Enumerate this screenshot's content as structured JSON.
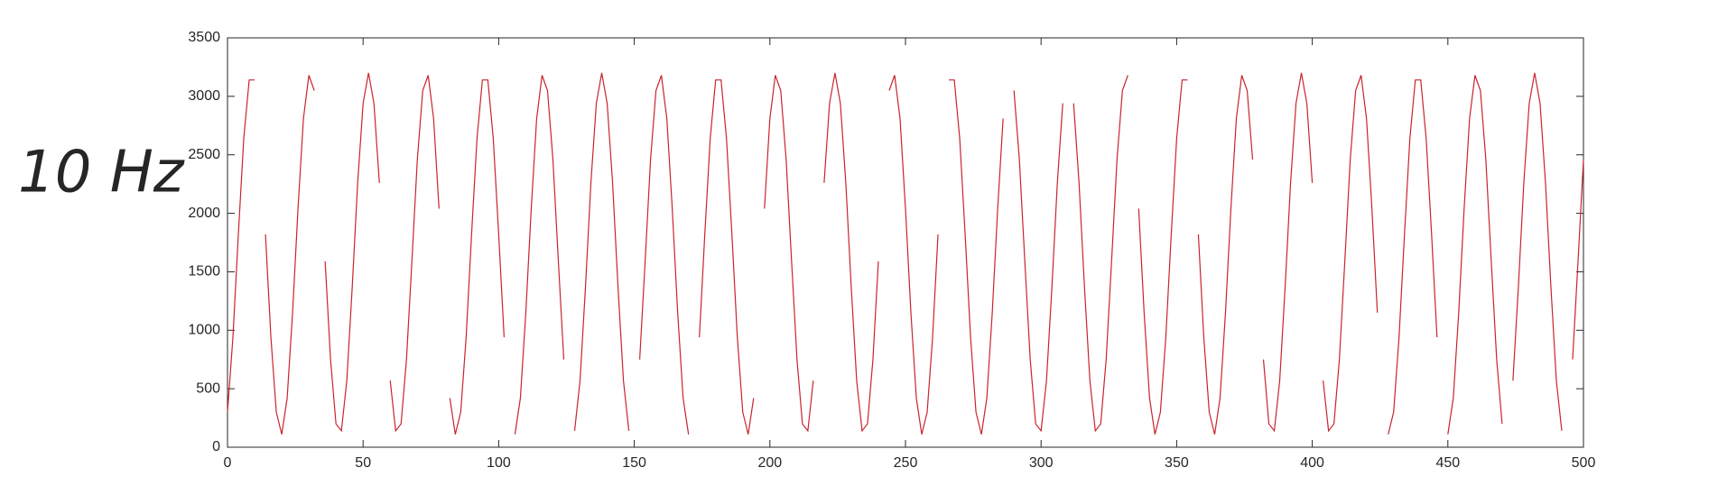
{
  "chart_data": {
    "type": "line",
    "annotation": "10 Hz",
    "annotation_color": "#1874cd",
    "x": [
      0,
      2,
      4,
      6,
      8,
      10,
      12,
      14,
      16,
      18,
      20,
      22,
      24,
      26,
      28,
      30,
      32,
      34,
      36,
      38,
      40,
      42,
      44,
      46,
      48,
      50,
      52,
      54,
      56,
      58,
      60,
      62,
      64,
      66,
      68,
      70,
      72,
      74,
      76,
      78,
      80,
      82,
      84,
      86,
      88,
      90,
      92,
      94,
      96,
      98,
      100,
      102,
      104,
      106,
      108,
      110,
      112,
      114,
      116,
      118,
      120,
      122,
      124,
      126,
      128,
      130,
      132,
      134,
      136,
      138,
      140,
      142,
      144,
      146,
      148,
      150,
      152,
      154,
      156,
      158,
      160,
      162,
      164,
      166,
      168,
      170,
      172,
      174,
      176,
      178,
      180,
      182,
      184,
      186,
      188,
      190,
      192,
      194,
      196,
      198,
      200,
      202,
      204,
      206,
      208,
      210,
      212,
      214,
      216,
      218,
      220,
      222,
      224,
      226,
      228,
      230,
      232,
      234,
      236,
      238,
      240,
      242,
      244,
      246,
      248,
      250,
      252,
      254,
      256,
      258,
      260,
      262,
      264,
      266,
      268,
      270,
      272,
      274,
      276,
      278,
      280,
      282,
      284,
      286,
      288,
      290,
      292,
      294,
      296,
      298,
      300,
      302,
      304,
      306,
      308,
      310,
      312,
      314,
      316,
      318,
      320,
      322,
      324,
      326,
      328,
      330,
      332,
      334,
      336,
      338,
      340,
      342,
      344,
      346,
      348,
      350,
      352,
      354,
      356,
      358,
      360,
      362,
      364,
      366,
      368,
      370,
      372,
      374,
      376,
      378,
      380,
      382,
      384,
      386,
      388,
      390,
      392,
      394,
      396,
      398,
      400,
      402,
      404,
      406,
      408,
      410,
      412,
      414,
      416,
      418,
      420,
      422,
      424,
      426,
      428,
      430,
      432,
      434,
      436,
      438,
      440,
      442,
      444,
      446,
      448,
      450,
      452,
      454,
      456,
      458,
      460,
      462,
      464,
      466,
      468,
      470,
      472,
      474,
      476,
      478,
      480,
      482,
      484,
      486,
      488,
      490,
      492,
      494,
      496,
      498,
      500
    ],
    "series": [
      {
        "color": "#c8252b",
        "values": [
          300,
          940,
          1820,
          2640,
          3140,
          3140,
          null,
          1820,
          940,
          300,
          110,
          420,
          1150,
          2040,
          2810,
          3180,
          3050,
          null,
          1590,
          750,
          200,
          140,
          570,
          1370,
          2260,
          2940,
          3200,
          2940,
          2260,
          null,
          570,
          140,
          200,
          750,
          1590,
          2460,
          3050,
          3180,
          2810,
          2040,
          null,
          420,
          110,
          300,
          940,
          1820,
          2640,
          3140,
          3140,
          2640,
          1820,
          940,
          null,
          110,
          420,
          1150,
          2040,
          2810,
          3180,
          3050,
          2460,
          1590,
          750,
          null,
          140,
          570,
          1370,
          2260,
          2940,
          3200,
          2940,
          2260,
          1370,
          570,
          140,
          null,
          750,
          1590,
          2460,
          3050,
          3180,
          2810,
          2040,
          1150,
          420,
          110,
          null,
          940,
          1820,
          2640,
          3140,
          3140,
          2640,
          1820,
          940,
          300,
          110,
          420,
          null,
          2040,
          2810,
          3180,
          3050,
          2460,
          1590,
          750,
          200,
          140,
          570,
          null,
          2260,
          2940,
          3200,
          2940,
          2260,
          1370,
          570,
          140,
          200,
          750,
          1590,
          null,
          3050,
          3180,
          2810,
          2040,
          1150,
          420,
          110,
          300,
          940,
          1820,
          null,
          3140,
          3140,
          2640,
          1820,
          940,
          300,
          110,
          420,
          1150,
          2040,
          2810,
          null,
          3050,
          2460,
          1590,
          750,
          200,
          140,
          570,
          1370,
          2260,
          2940,
          null,
          2940,
          2260,
          1370,
          570,
          140,
          200,
          750,
          1590,
          2460,
          3050,
          3180,
          null,
          2040,
          1150,
          420,
          110,
          300,
          940,
          1820,
          2640,
          3140,
          3140,
          null,
          1820,
          940,
          300,
          110,
          420,
          1150,
          2040,
          2810,
          3180,
          3050,
          2460,
          null,
          750,
          200,
          140,
          570,
          1370,
          2260,
          2940,
          3200,
          2940,
          2260,
          null,
          570,
          140,
          200,
          750,
          1590,
          2460,
          3050,
          3180,
          2810,
          2040,
          1150,
          null,
          110,
          300,
          940,
          1820,
          2640,
          3140,
          3140,
          2640,
          1820,
          940,
          null,
          110,
          420,
          1150,
          2040,
          2810,
          3180,
          3050,
          2460,
          1590,
          750,
          200,
          null,
          570,
          1370,
          2260,
          2940,
          3200,
          2940,
          2260,
          1370,
          570,
          140,
          null,
          750,
          1590,
          2460
        ]
      }
    ],
    "xlim": [
      0,
      500
    ],
    "xticks": [
      0,
      50,
      100,
      150,
      200,
      250,
      300,
      350,
      400,
      450,
      500
    ],
    "ylim": [
      0,
      3500
    ],
    "yticks": [
      0,
      500,
      1000,
      1500,
      2000,
      2500,
      3000,
      3500
    ],
    "grid": false
  }
}
